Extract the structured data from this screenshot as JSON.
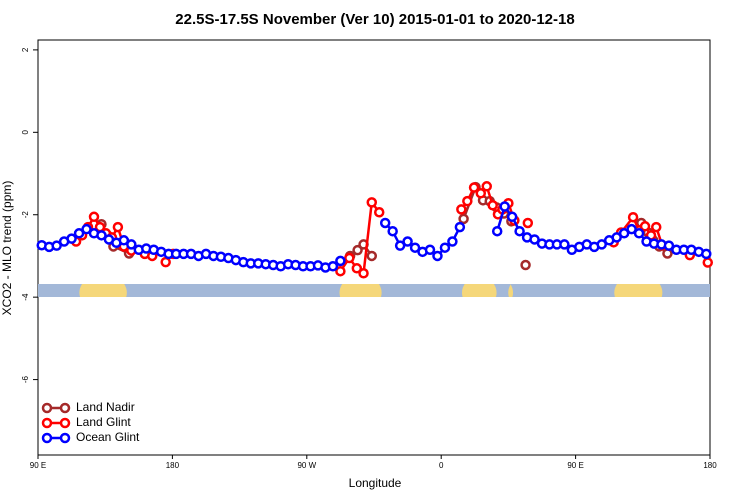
{
  "chart_data": {
    "type": "line",
    "title": "22.5S-17.5S November (Ver 10)   2015-01-01 to 2020-12-18",
    "x_label": "Longitude",
    "y_label": "XCO2 - MLO trend (ppm)",
    "xlim": [
      90,
      540
    ],
    "xticks": [
      {
        "value": 90,
        "label": "90 E"
      },
      180,
      {
        "value": 270,
        "label": "90 W"
      },
      {
        "value": 360,
        "label": "0"
      },
      {
        "value": 450,
        "label": "90 E"
      },
      {
        "value": 540,
        "label": "180"
      }
    ],
    "ylim": [
      -7.83,
      2.24
    ],
    "yticks": [
      2,
      0,
      -2,
      -4,
      -6
    ],
    "legend": "bottom-left",
    "land_color": "#f5d77a",
    "ocean_color": "#a3b8d8",
    "land_bands": [
      [
        116.8,
        150.4
      ],
      [
        291,
        321
      ],
      [
        373,
        398
      ],
      [
        404,
        409
      ],
      [
        475,
        509
      ]
    ],
    "series": [
      {
        "name": "Land Nadir",
        "color": "#a52a2a",
        "x": [
          132.5,
          136.5,
          140.5,
          151,
          null,
          299,
          304,
          308,
          313.5,
          null,
          375,
          383,
          388,
          392.5,
          397,
          402,
          407,
          null,
          416.5,
          null,
          494,
          498.5,
          502,
          506,
          511.5
        ],
        "values": [
          -2.23,
          -2.5,
          -2.77,
          -2.94,
          null,
          -3.0,
          -2.86,
          -2.72,
          -3.0,
          null,
          -2.1,
          -1.33,
          -1.65,
          -1.67,
          -1.82,
          -1.97,
          -2.16,
          null,
          -3.22,
          null,
          -2.2,
          -2.43,
          -2.62,
          -2.77,
          -2.94
        ]
      },
      {
        "name": "Land Glint",
        "color": "#ff0000",
        "x": [
          115.5,
          119.5,
          123.5,
          127.5,
          131.5,
          135.5,
          139.5,
          143.5,
          147.5,
          152.5,
          null,
          161.5,
          166.5,
          null,
          175.5,
          180.5,
          null,
          292.5,
          298.5,
          303.5,
          308,
          313.5,
          318.5,
          null,
          373.5,
          377.5,
          382,
          386.5,
          390.5,
          394.5,
          398,
          401,
          405,
          409,
          null,
          418,
          null,
          475.5,
          480.5,
          488.5,
          492.5,
          496.5,
          500.5,
          504,
          508,
          null,
          526.5,
          null,
          538.5
        ],
        "values": [
          -2.65,
          -2.5,
          -2.3,
          -2.05,
          -2.3,
          -2.45,
          -2.55,
          -2.3,
          -2.77,
          -2.87,
          null,
          -2.95,
          -3.0,
          null,
          -3.15,
          -2.95,
          null,
          -3.37,
          -3.05,
          -3.3,
          -3.42,
          -1.7,
          -1.94,
          null,
          -1.87,
          -1.67,
          -1.34,
          -1.48,
          -1.31,
          -1.77,
          -1.99,
          -1.87,
          -1.72,
          -2.14,
          null,
          -2.2,
          null,
          -2.67,
          -2.43,
          -2.06,
          -2.38,
          -2.28,
          -2.5,
          -2.3,
          -2.74,
          null,
          -2.98,
          null,
          -3.16
        ]
      },
      {
        "name": "Ocean Glint",
        "color": "#0000ff",
        "x": [
          92.5,
          97.5,
          102.5,
          107.5,
          112.5,
          117.5,
          122.5,
          127.5,
          132.5,
          137.5,
          142.5,
          147.5,
          152.5,
          157.5,
          162.5,
          167.5,
          172.5,
          177.5,
          182.5,
          187.5,
          192.5,
          197.5,
          202.5,
          207.5,
          212.5,
          217.5,
          222.5,
          227.5,
          232.5,
          237.5,
          242.5,
          247.5,
          252.5,
          257.5,
          262.5,
          267.5,
          272.5,
          277.5,
          282.5,
          287.5,
          292.5,
          null,
          322.5,
          327.5,
          332.5,
          337.5,
          342.5,
          347.5,
          352.5,
          357.5,
          362.5,
          367.5,
          372.5,
          null,
          397.5,
          402.5,
          407.5,
          412.5,
          417.5,
          422.5,
          427.5,
          432.5,
          437.5,
          442.5,
          447.5,
          452.5,
          457.5,
          462.5,
          467.5,
          472.5,
          477.5,
          482.5,
          487.5,
          492.5,
          497.5,
          502.5,
          507.5,
          512.5,
          517.5,
          522.5,
          527.5,
          532.5,
          537.5
        ],
        "values": [
          -2.74,
          -2.78,
          -2.75,
          -2.65,
          -2.58,
          -2.45,
          -2.35,
          -2.45,
          -2.5,
          -2.6,
          -2.68,
          -2.62,
          -2.72,
          -2.85,
          -2.82,
          -2.85,
          -2.9,
          -2.95,
          -2.95,
          -2.95,
          -2.95,
          -3.0,
          -2.95,
          -3.0,
          -3.02,
          -3.05,
          -3.1,
          -3.15,
          -3.18,
          -3.18,
          -3.2,
          -3.22,
          -3.25,
          -3.2,
          -3.22,
          -3.25,
          -3.25,
          -3.23,
          -3.28,
          -3.25,
          -3.12,
          null,
          -2.2,
          -2.4,
          -2.75,
          -2.65,
          -2.8,
          -2.9,
          -2.85,
          -3.0,
          -2.8,
          -2.65,
          -2.3,
          null,
          -2.4,
          -1.8,
          -2.05,
          -2.4,
          -2.55,
          -2.6,
          -2.7,
          -2.72,
          -2.72,
          -2.72,
          -2.85,
          -2.78,
          -2.72,
          -2.78,
          -2.72,
          -2.62,
          -2.55,
          -2.45,
          -2.35,
          -2.45,
          -2.65,
          -2.7,
          -2.72,
          -2.75,
          -2.85,
          -2.85,
          -2.85,
          -2.9,
          -2.95
        ]
      }
    ]
  }
}
